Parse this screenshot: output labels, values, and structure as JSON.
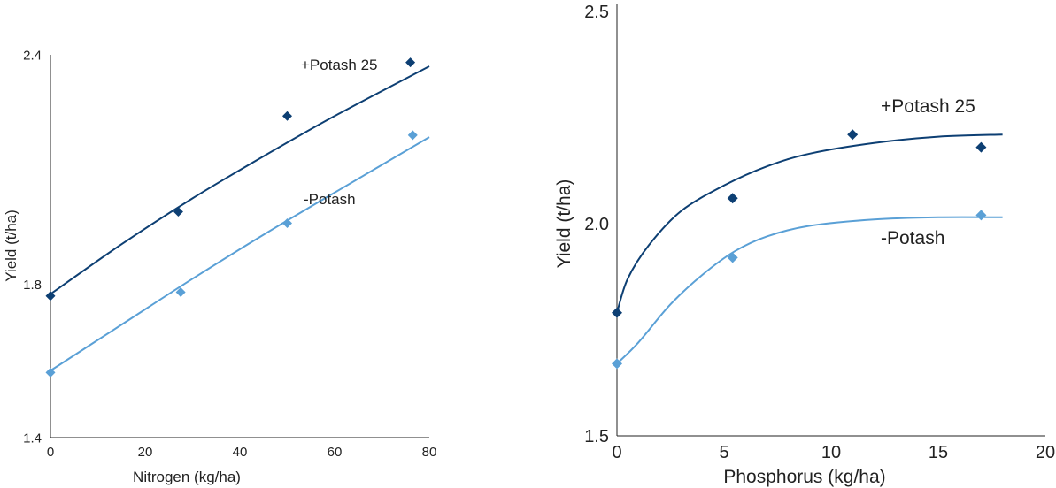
{
  "chart_data": [
    {
      "type": "scatter",
      "xlabel": "Nitrogen (kg/ha)",
      "ylabel": "Yield (t/ha)",
      "xlim": [
        0,
        80
      ],
      "ylim": [
        1.4,
        2.4
      ],
      "xticks": [
        "0",
        "20",
        "40",
        "60",
        "80"
      ],
      "yticks": [
        "1.4",
        "1.8",
        "2.4"
      ],
      "series": [
        {
          "name": "+Potash 25",
          "color": "#0d3f73",
          "points": [
            [
              0,
              1.77
            ],
            [
              27,
              1.99
            ],
            [
              50,
              2.24
            ],
            [
              76,
              2.38
            ]
          ],
          "fit": [
            [
              0,
              1.775
            ],
            [
              15,
              1.905
            ],
            [
              30,
              2.025
            ],
            [
              45,
              2.135
            ],
            [
              60,
              2.24
            ],
            [
              80,
              2.37
            ]
          ]
        },
        {
          "name": "-Potash",
          "color": "#5aa0d6",
          "points": [
            [
              0,
              1.57
            ],
            [
              27.5,
              1.78
            ],
            [
              50,
              1.96
            ],
            [
              76.5,
              2.19
            ]
          ],
          "fit": [
            [
              0,
              1.575
            ],
            [
              15,
              1.695
            ],
            [
              30,
              1.815
            ],
            [
              45,
              1.93
            ],
            [
              60,
              2.04
            ],
            [
              80,
              2.185
            ]
          ]
        }
      ]
    },
    {
      "type": "scatter",
      "xlabel": "Phosphorus (kg/ha)",
      "ylabel": "Yield (t/ha)",
      "xlim": [
        0,
        20
      ],
      "ylim": [
        1.5,
        2.5
      ],
      "xticks": [
        "0",
        "5",
        "10",
        "15",
        "20"
      ],
      "yticks": [
        "1.5",
        "2.0",
        "2.5"
      ],
      "series": [
        {
          "name": "+Potash 25",
          "color": "#0d3f73",
          "points": [
            [
              0,
              1.79
            ],
            [
              5.4,
              2.06
            ],
            [
              11,
              2.21
            ],
            [
              17,
              2.18
            ]
          ],
          "fit": [
            [
              0,
              1.79
            ],
            [
              0.5,
              1.87
            ],
            [
              1.5,
              1.95
            ],
            [
              3,
              2.03
            ],
            [
              5,
              2.09
            ],
            [
              7,
              2.135
            ],
            [
              9,
              2.165
            ],
            [
              12,
              2.19
            ],
            [
              15,
              2.205
            ],
            [
              18,
              2.21
            ]
          ]
        },
        {
          "name": "-Potash",
          "color": "#5aa0d6",
          "points": [
            [
              0,
              1.67
            ],
            [
              5.4,
              1.92
            ],
            [
              17,
              2.02
            ]
          ],
          "fit": [
            [
              0,
              1.67
            ],
            [
              1,
              1.72
            ],
            [
              2.5,
              1.81
            ],
            [
              4,
              1.88
            ],
            [
              5.5,
              1.935
            ],
            [
              7,
              1.97
            ],
            [
              9,
              1.995
            ],
            [
              12,
              2.01
            ],
            [
              15,
              2.015
            ],
            [
              18,
              2.015
            ]
          ]
        }
      ]
    }
  ]
}
